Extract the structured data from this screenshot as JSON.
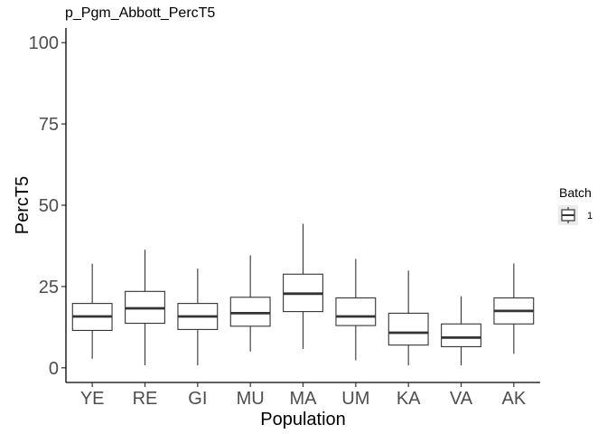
{
  "chart_data": {
    "type": "box",
    "title": "p_Pgm_Abbott_PercT5",
    "xlabel": "Population",
    "ylabel": "PercT5",
    "ylim": [
      -4.5,
      104.5
    ],
    "yticks": [
      0,
      25,
      50,
      75,
      100
    ],
    "categories": [
      "YE",
      "RE",
      "GI",
      "MU",
      "MA",
      "UM",
      "KA",
      "VA",
      "AK"
    ],
    "series": [
      {
        "name": "1",
        "boxes": [
          {
            "category": "YE",
            "min": 2.8,
            "q1": 11.5,
            "median": 15.8,
            "q3": 19.8,
            "max": 32.0
          },
          {
            "category": "RE",
            "min": 0.8,
            "q1": 13.7,
            "median": 18.3,
            "q3": 23.5,
            "max": 36.3
          },
          {
            "category": "GI",
            "min": 0.8,
            "q1": 11.8,
            "median": 15.8,
            "q3": 19.8,
            "max": 30.5
          },
          {
            "category": "MU",
            "min": 5.0,
            "q1": 12.8,
            "median": 16.8,
            "q3": 21.7,
            "max": 34.6
          },
          {
            "category": "MA",
            "min": 5.8,
            "q1": 17.3,
            "median": 22.8,
            "q3": 28.8,
            "max": 44.3
          },
          {
            "category": "UM",
            "min": 2.3,
            "q1": 13.0,
            "median": 15.8,
            "q3": 21.5,
            "max": 33.5
          },
          {
            "category": "KA",
            "min": 0.8,
            "q1": 7.0,
            "median": 10.8,
            "q3": 16.8,
            "max": 29.9
          },
          {
            "category": "VA",
            "min": 0.8,
            "q1": 6.5,
            "median": 9.3,
            "q3": 13.5,
            "max": 22.0
          },
          {
            "category": "AK",
            "min": 4.3,
            "q1": 13.5,
            "median": 17.5,
            "q3": 21.5,
            "max": 32.1
          }
        ]
      }
    ],
    "grid": false,
    "legend": {
      "title": "Batch",
      "position": "right",
      "entries": [
        "1"
      ]
    }
  }
}
